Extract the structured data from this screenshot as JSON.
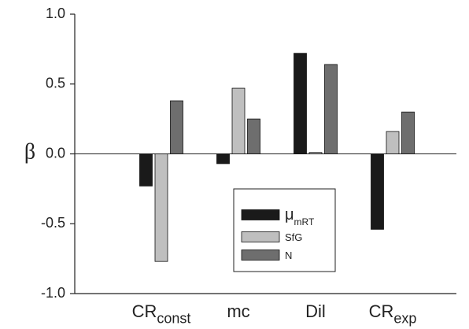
{
  "chart_data": {
    "type": "bar",
    "y_label": "β",
    "categories": [
      {
        "text": "CR",
        "sub": "const"
      },
      {
        "text": "mc"
      },
      {
        "text": "Dil"
      },
      {
        "text": "CR",
        "sub": "exp"
      }
    ],
    "series": [
      {
        "name": {
          "text": "μ",
          "sub": "mRT"
        },
        "color": "#1a1a1a",
        "values": [
          -0.23,
          -0.07,
          0.72,
          -0.54
        ]
      },
      {
        "name": {
          "text": "SfG"
        },
        "color": "#bfbfbf",
        "values": [
          -0.77,
          0.47,
          0.01,
          0.16
        ]
      },
      {
        "name": {
          "text": "N"
        },
        "color": "#6e6e6e",
        "values": [
          0.38,
          0.25,
          0.64,
          0.3
        ]
      }
    ],
    "ylim": [
      -1.0,
      1.0
    ],
    "yticks": [
      {
        "value": -1.0,
        "label": "-1.0"
      },
      -0.5,
      {
        "value": 0.0,
        "label": "0.0"
      },
      0.5,
      {
        "value": 1.0,
        "label": "1.0"
      }
    ],
    "zero_line": true
  }
}
